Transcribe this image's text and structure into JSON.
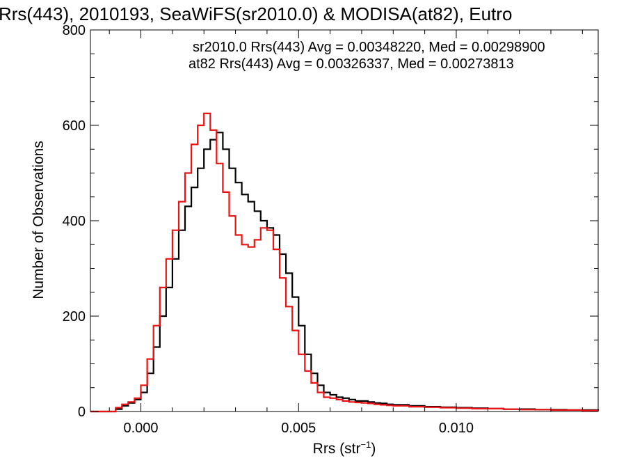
{
  "chart_data": {
    "type": "line",
    "subtype": "step-histogram",
    "title": "Rrs(443), 2010193, SeaWiFS(sr2010.0) & MODISA(at82), Eutro",
    "xlabel": "Rrs (str",
    "xlabel_sup": "−1",
    "xlabel_end": ")",
    "ylabel": "Number of Observations",
    "xlim": [
      -0.0016,
      0.0145
    ],
    "ylim": [
      0,
      800
    ],
    "xticks": [
      0.0,
      0.005,
      0.01
    ],
    "xtick_labels": [
      "0.000",
      "0.005",
      "0.010"
    ],
    "yticks": [
      0,
      200,
      400,
      600,
      800
    ],
    "ytick_labels": [
      "0",
      "200",
      "400",
      "600",
      "800"
    ],
    "legend": [
      {
        "text": "sr2010.0 Rrs(443) Avg = 0.00348220, Med = 0.00298900",
        "color": "#000000"
      },
      {
        "text": "at82 Rrs(443) Avg = 0.00326337, Med = 0.00273813",
        "color": "#ee1111"
      }
    ],
    "series": [
      {
        "color": "#000000",
        "x": [
          -0.0016,
          -0.001,
          -0.0008,
          -0.0006,
          -0.0004,
          -0.0002,
          0.0,
          0.0002,
          0.0004,
          0.0006,
          0.0008,
          0.001,
          0.0012,
          0.0014,
          0.0016,
          0.0018,
          0.002,
          0.0022,
          0.0024,
          0.0026,
          0.0028,
          0.003,
          0.0032,
          0.0034,
          0.0036,
          0.0038,
          0.004,
          0.0042,
          0.0044,
          0.0046,
          0.0048,
          0.005,
          0.0052,
          0.0054,
          0.0056,
          0.0058,
          0.006,
          0.0062,
          0.0064,
          0.0066,
          0.0068,
          0.007,
          0.0072,
          0.0074,
          0.0076,
          0.0078,
          0.008,
          0.0085,
          0.009,
          0.0095,
          0.01,
          0.0105,
          0.011,
          0.0115,
          0.012,
          0.0125,
          0.013,
          0.0135,
          0.014,
          0.0145
        ],
        "y": [
          0,
          0,
          5,
          12,
          18,
          25,
          40,
          80,
          135,
          200,
          260,
          320,
          380,
          430,
          470,
          510,
          550,
          570,
          585,
          550,
          510,
          480,
          455,
          440,
          420,
          400,
          385,
          370,
          330,
          290,
          240,
          180,
          120,
          80,
          55,
          40,
          35,
          30,
          28,
          25,
          22,
          22,
          20,
          18,
          17,
          15,
          14,
          12,
          10,
          9,
          8,
          7,
          6,
          5,
          5,
          4,
          4,
          3,
          3,
          2
        ]
      },
      {
        "color": "#ee1111",
        "x": [
          -0.0016,
          -0.001,
          -0.0008,
          -0.0006,
          -0.0004,
          -0.0002,
          0.0,
          0.0002,
          0.0004,
          0.0006,
          0.0008,
          0.001,
          0.0012,
          0.0014,
          0.0016,
          0.0018,
          0.002,
          0.0022,
          0.0024,
          0.0026,
          0.0028,
          0.003,
          0.0032,
          0.0034,
          0.0036,
          0.0038,
          0.004,
          0.0042,
          0.0044,
          0.0046,
          0.0048,
          0.005,
          0.0052,
          0.0054,
          0.0056,
          0.0058,
          0.006,
          0.0062,
          0.0064,
          0.0066,
          0.0068,
          0.007,
          0.0072,
          0.0074,
          0.0076,
          0.0078,
          0.008,
          0.0085,
          0.009,
          0.0095,
          0.01,
          0.0105,
          0.011,
          0.0115,
          0.012,
          0.0125,
          0.013,
          0.0135,
          0.014,
          0.0145
        ],
        "y": [
          0,
          0,
          8,
          15,
          20,
          28,
          55,
          110,
          180,
          260,
          320,
          380,
          440,
          500,
          560,
          600,
          625,
          590,
          520,
          460,
          410,
          370,
          350,
          345,
          360,
          385,
          380,
          340,
          280,
          220,
          170,
          120,
          85,
          60,
          40,
          30,
          28,
          25,
          22,
          20,
          19,
          18,
          17,
          15,
          14,
          13,
          12,
          10,
          9,
          8,
          7,
          6,
          6,
          5,
          4,
          4,
          3,
          3,
          2,
          2
        ]
      }
    ]
  }
}
